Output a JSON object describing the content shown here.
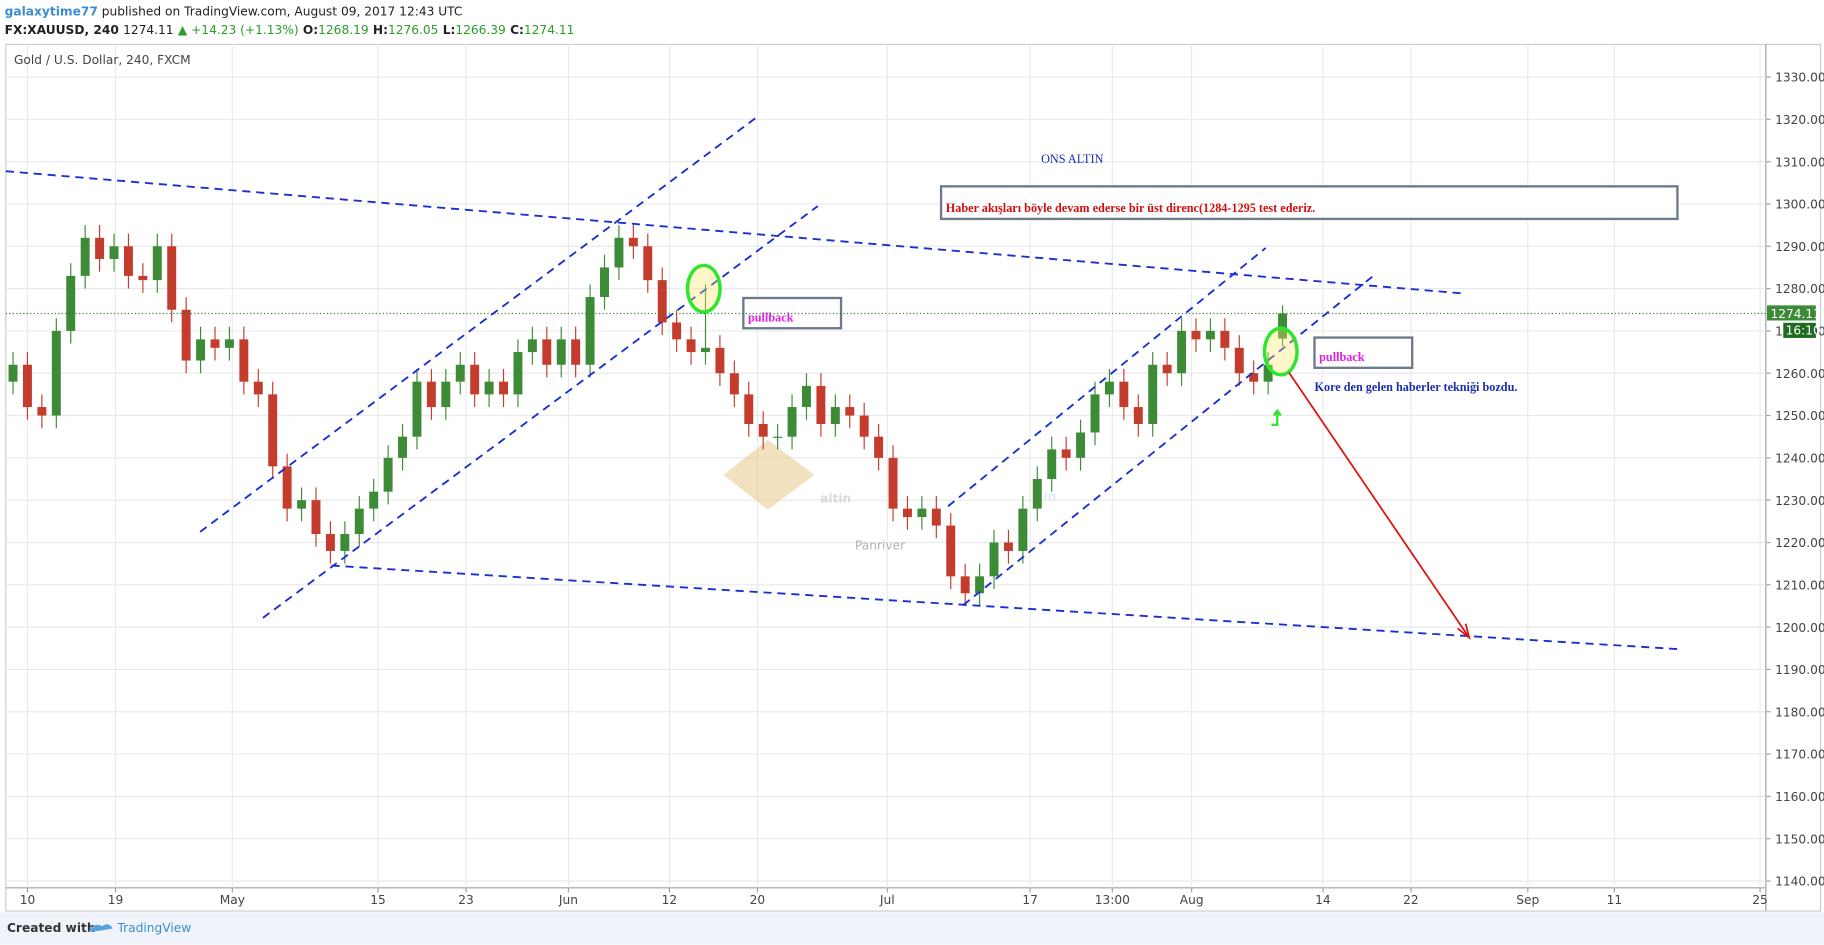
{
  "header": {
    "user": "galaxytime77",
    "published": "published on TradingView.com, August 09, 2017 12:43 UTC",
    "symbol": "FX:XAUUSD, 240",
    "last": "1274.11",
    "change": "▲ +14.23 (+1.13%)",
    "o_label": "O:",
    "o": "1268.19",
    "h_label": "H:",
    "h": "1276.05",
    "l_label": "L:",
    "l": "1266.39",
    "c_label": "C:",
    "c": "1274.11"
  },
  "chart_data": {
    "type": "candlestick",
    "title": "Gold / U.S. Dollar, 240, FXCM",
    "x": [
      0.5,
      1.5,
      2.5,
      3.5,
      4.5,
      5.5,
      6.5,
      7.5,
      8.5,
      9.5,
      10.5,
      11.5,
      12.5,
      13.5,
      14.5,
      15.5,
      16.5,
      17.5,
      18.5,
      19.5,
      20.5,
      21.5,
      22.5,
      23.5,
      24.5,
      25.5,
      26.5,
      27.5,
      28.5,
      29.5,
      30.5,
      31.5,
      32.5,
      33.5,
      34.5,
      35.5,
      36.5,
      37.5,
      38.5,
      39.5,
      40.5,
      41.5,
      42.5,
      43.5,
      44.5,
      45.5,
      46.5,
      47.5,
      48.5,
      49.5,
      50.5,
      51.5,
      52.5,
      53.5,
      54.5,
      55.5,
      56.5,
      57.5,
      58.5,
      59.5,
      60.5,
      61.5,
      62.5,
      63.5,
      64.5,
      65.5,
      66.5,
      67.5,
      68.5,
      69.5,
      70.5,
      71.5,
      72.5,
      73.5,
      74.5,
      75.5,
      76.5,
      77.5,
      78.5,
      79.5,
      80.5,
      81.5,
      82.5,
      83.5,
      84.5,
      85.5,
      86.5,
      87.5,
      88.5
    ],
    "open": [
      1258,
      1262,
      1252,
      1250,
      1270,
      1283,
      1292,
      1287,
      1290,
      1283,
      1282,
      1290,
      1275,
      1263,
      1268,
      1266,
      1268,
      1258,
      1255,
      1238,
      1228,
      1230,
      1222,
      1218,
      1222,
      1228,
      1232,
      1240,
      1245,
      1258,
      1252,
      1258,
      1262,
      1255,
      1258,
      1255,
      1265,
      1268,
      1262,
      1268,
      1262,
      1278,
      1285,
      1292,
      1290,
      1282,
      1272,
      1268,
      1265,
      1266,
      1260,
      1255,
      1248,
      1245,
      1245,
      1252,
      1257,
      1248,
      1252,
      1250,
      1245,
      1240,
      1228,
      1226,
      1228,
      1224,
      1212,
      1208,
      1212,
      1220,
      1218,
      1228,
      1235,
      1242,
      1240,
      1246,
      1255,
      1258,
      1252,
      1248,
      1262,
      1260,
      1270,
      1268,
      1270,
      1266,
      1260,
      1258,
      1268.19
    ],
    "high": [
      1265,
      1265,
      1255,
      1273,
      1286,
      1295,
      1295,
      1293,
      1293,
      1286,
      1293,
      1293,
      1278,
      1271,
      1271,
      1271,
      1271,
      1261,
      1258,
      1241,
      1233,
      1233,
      1225,
      1225,
      1231,
      1235,
      1243,
      1248,
      1261,
      1261,
      1261,
      1265,
      1265,
      1261,
      1261,
      1268,
      1271,
      1271,
      1271,
      1271,
      1281,
      1288,
      1295,
      1295,
      1293,
      1285,
      1275,
      1271,
      1281,
      1269,
      1263,
      1258,
      1251,
      1248,
      1255,
      1260,
      1260,
      1255,
      1255,
      1253,
      1248,
      1243,
      1231,
      1231,
      1231,
      1227,
      1215,
      1215,
      1223,
      1223,
      1231,
      1238,
      1245,
      1245,
      1249,
      1258,
      1261,
      1261,
      1255,
      1265,
      1265,
      1273,
      1273,
      1273,
      1273,
      1269,
      1263,
      1265,
      1276.05
    ],
    "low": [
      1255,
      1249,
      1247,
      1247,
      1267,
      1280,
      1284,
      1284,
      1280,
      1279,
      1279,
      1272,
      1260,
      1260,
      1263,
      1263,
      1255,
      1252,
      1235,
      1225,
      1225,
      1219,
      1215,
      1215,
      1219,
      1225,
      1229,
      1237,
      1242,
      1249,
      1249,
      1255,
      1252,
      1252,
      1252,
      1252,
      1262,
      1259,
      1259,
      1259,
      1259,
      1275,
      1282,
      1287,
      1279,
      1269,
      1265,
      1262,
      1262,
      1257,
      1252,
      1245,
      1242,
      1242,
      1242,
      1249,
      1245,
      1245,
      1247,
      1242,
      1237,
      1225,
      1223,
      1223,
      1221,
      1209,
      1205,
      1205,
      1209,
      1215,
      1215,
      1225,
      1232,
      1237,
      1237,
      1243,
      1252,
      1249,
      1245,
      1245,
      1257,
      1257,
      1265,
      1265,
      1263,
      1257,
      1255,
      1255,
      1266.39
    ],
    "close": [
      1262,
      1252,
      1250,
      1270,
      1283,
      1292,
      1287,
      1290,
      1283,
      1282,
      1290,
      1275,
      1263,
      1268,
      1266,
      1268,
      1258,
      1255,
      1238,
      1228,
      1230,
      1222,
      1218,
      1222,
      1228,
      1232,
      1240,
      1245,
      1258,
      1252,
      1258,
      1262,
      1255,
      1258,
      1255,
      1265,
      1268,
      1262,
      1268,
      1262,
      1278,
      1285,
      1292,
      1290,
      1282,
      1272,
      1268,
      1265,
      1266,
      1260,
      1255,
      1248,
      1245,
      1245,
      1252,
      1257,
      1248,
      1252,
      1250,
      1245,
      1240,
      1228,
      1226,
      1228,
      1224,
      1212,
      1208,
      1212,
      1220,
      1218,
      1228,
      1235,
      1242,
      1240,
      1246,
      1255,
      1258,
      1252,
      1248,
      1262,
      1260,
      1270,
      1268,
      1270,
      1266,
      1260,
      1258,
      1262,
      1274.11
    ],
    "up_color": "#3d8b37",
    "down_color": "#c43c2c",
    "xlim": [
      0,
      122
    ],
    "xticks": [
      {
        "value": 1.5,
        "label": "10"
      },
      {
        "value": 7.6,
        "label": "19"
      },
      {
        "value": 15.7,
        "label": "May"
      },
      {
        "value": 25.8,
        "label": "15"
      },
      {
        "value": 31.9,
        "label": "23"
      },
      {
        "value": 39,
        "label": "Jun"
      },
      {
        "value": 46,
        "label": "12"
      },
      {
        "value": 52.1,
        "label": "20"
      },
      {
        "value": 61.1,
        "label": "Jul"
      },
      {
        "value": 71,
        "label": "17"
      },
      {
        "value": 76.7,
        "label": "13:00"
      },
      {
        "value": 82.2,
        "label": "Aug"
      },
      {
        "value": 91.3,
        "label": "14"
      },
      {
        "value": 97.4,
        "label": "22"
      },
      {
        "value": 105.5,
        "label": "Sep"
      },
      {
        "value": 111.5,
        "label": "11"
      },
      {
        "value": 121.6,
        "label": "25"
      }
    ],
    "ylim": [
      1138.4,
      1337.7
    ],
    "yticks": [
      {
        "value": 1140,
        "label": "1140.00"
      },
      {
        "value": 1150,
        "label": "1150.00"
      },
      {
        "value": 1160,
        "label": "1160.00"
      },
      {
        "value": 1170,
        "label": "1170.00"
      },
      {
        "value": 1180,
        "label": "1180.00"
      },
      {
        "value": 1190,
        "label": "1190.00"
      },
      {
        "value": 1200,
        "label": "1200.00"
      },
      {
        "value": 1210,
        "label": "1210.00"
      },
      {
        "value": 1220,
        "label": "1220.00"
      },
      {
        "value": 1230,
        "label": "1230.00"
      },
      {
        "value": 1240,
        "label": "1240.00"
      },
      {
        "value": 1250,
        "label": "1250.00"
      },
      {
        "value": 1260,
        "label": "1260.00"
      },
      {
        "value": 1270,
        "label": "1270.00"
      },
      {
        "value": 1280,
        "label": "1280.00"
      },
      {
        "value": 1290,
        "label": "1290.00"
      },
      {
        "value": 1300,
        "label": "1300.00"
      },
      {
        "value": 1310,
        "label": "1310.00"
      },
      {
        "value": 1320,
        "label": "1320.00"
      },
      {
        "value": 1330,
        "label": "1330.00"
      }
    ],
    "grid": true,
    "countdown": "16:10",
    "annotations": {
      "title": "ONS ALTIN",
      "forecast": "Haber akışları böyle devam ederse bir üst direnc(1284-1295 test ederiz.",
      "pullback_1": "pullback",
      "pullback_2": "pullback",
      "news": "Kore den gelen haberler tekniği bozdu."
    },
    "watermark": {
      "main": "altin",
      "suffix": ".in",
      "sub": "Panriver"
    }
  },
  "footer": {
    "created": "Created with",
    "brand": "TradingView"
  }
}
